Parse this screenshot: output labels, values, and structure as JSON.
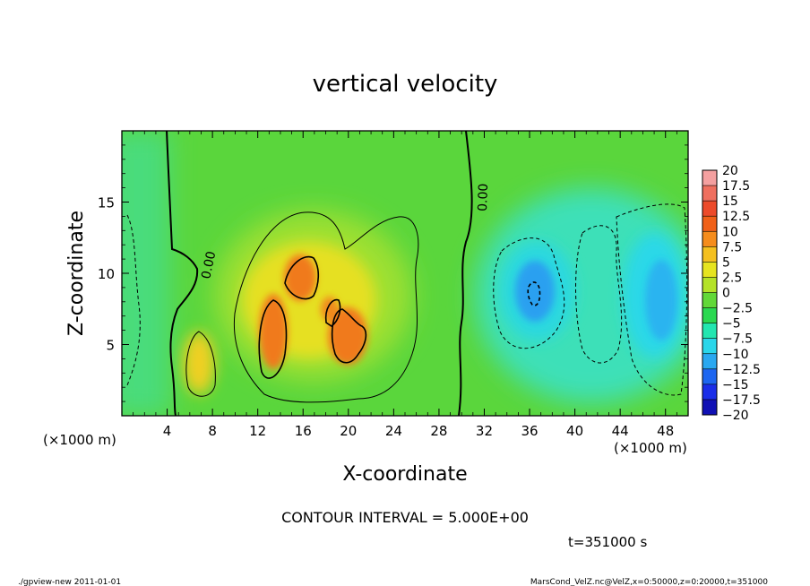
{
  "chart_data": {
    "type": "heatmap",
    "title": "vertical velocity",
    "xlabel": "X-coordinate",
    "ylabel": "Z-coordinate",
    "x_unit_left": "(×1000 m)",
    "x_unit_right": "(×1000 m)",
    "xlim": [
      0,
      50
    ],
    "ylim": [
      0,
      20
    ],
    "x_ticks": [
      4,
      8,
      12,
      16,
      20,
      24,
      28,
      32,
      36,
      40,
      44,
      48
    ],
    "y_ticks": [
      5,
      10,
      15
    ],
    "zero_contour_label": "0.00",
    "colorbar": {
      "levels": [
        20,
        17.5,
        15,
        12.5,
        10,
        7.5,
        5,
        2.5,
        0,
        -2.5,
        -5,
        -7.5,
        -10,
        -12.5,
        -15,
        -17.5,
        -20
      ],
      "colors": [
        "#f4a0a0",
        "#ef6f5f",
        "#ec4a2a",
        "#f06018",
        "#f58c1c",
        "#f4c020",
        "#e6e420",
        "#b4e228",
        "#62d838",
        "#2ad850",
        "#22e6b0",
        "#2ad6ea",
        "#2aa8f0",
        "#1d66f0",
        "#1a2ee8",
        "#1010b4",
        "#6a0cbe"
      ]
    },
    "features": [
      {
        "kind": "updraft-core",
        "x": 14.5,
        "z": 6.5,
        "peak": 12.5
      },
      {
        "kind": "updraft-core",
        "x": 16.5,
        "z": 10.5,
        "peak": 12.5
      },
      {
        "kind": "updraft-core",
        "x": 19.5,
        "z": 6.5,
        "peak": 12.5
      },
      {
        "kind": "downdraft-core",
        "x": 36.5,
        "z": 8.5,
        "peak": -10
      }
    ]
  },
  "contour_interval": "CONTOUR INTERVAL = 5.000E+00",
  "time_label": "t=351000 s",
  "footer_left": "./gpview-new  2011-01-01",
  "footer_right": "MarsCond_VelZ.nc@VelZ,x=0:50000,z=0:20000,t=351000"
}
